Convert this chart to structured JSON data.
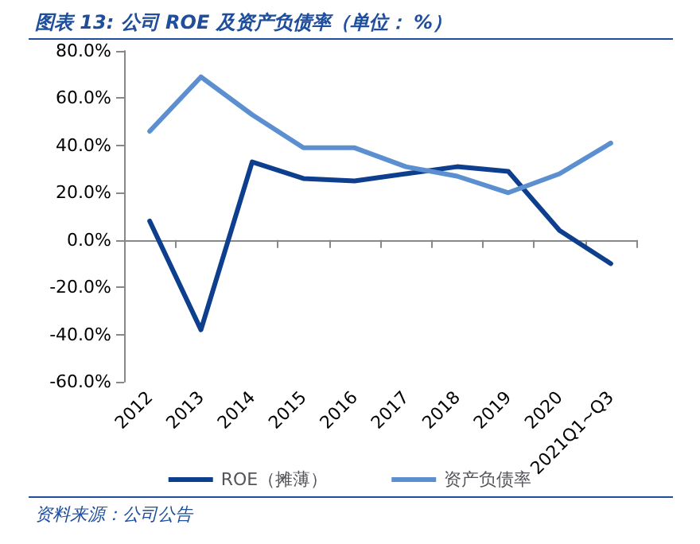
{
  "chart_data": {
    "type": "line",
    "title": "图表 13: 公司 ROE 及资产负债率（单位： %）",
    "categories": [
      "2012",
      "2013",
      "2014",
      "2015",
      "2016",
      "2017",
      "2018",
      "2019",
      "2020",
      "2021Q1~Q3"
    ],
    "series": [
      {
        "name": "ROE（摊薄）",
        "color": "#0e3f8e",
        "values": [
          8,
          -38,
          33,
          26,
          25,
          28,
          31,
          29,
          4,
          -10
        ]
      },
      {
        "name": "资产负债率",
        "color": "#5b8fd0",
        "values": [
          46,
          69,
          53,
          39,
          39,
          31,
          27,
          20,
          28,
          41
        ]
      }
    ],
    "ylim": [
      -60,
      80
    ],
    "yticks": [
      {
        "value": -60,
        "label": "-60.0%"
      },
      {
        "value": -40,
        "label": "-40.0%"
      },
      {
        "value": -20,
        "label": "-20.0%"
      },
      {
        "value": 0,
        "label": "0.0%"
      },
      {
        "value": 20,
        "label": "20.0%"
      },
      {
        "value": 40,
        "label": "40.0%"
      },
      {
        "value": 60,
        "label": "60.0%"
      },
      {
        "value": 80,
        "label": "80.0%"
      }
    ],
    "legend": "bottom",
    "marker": "none",
    "line_style": "solid",
    "annotations": [
      "资料来源：公司公告"
    ]
  }
}
